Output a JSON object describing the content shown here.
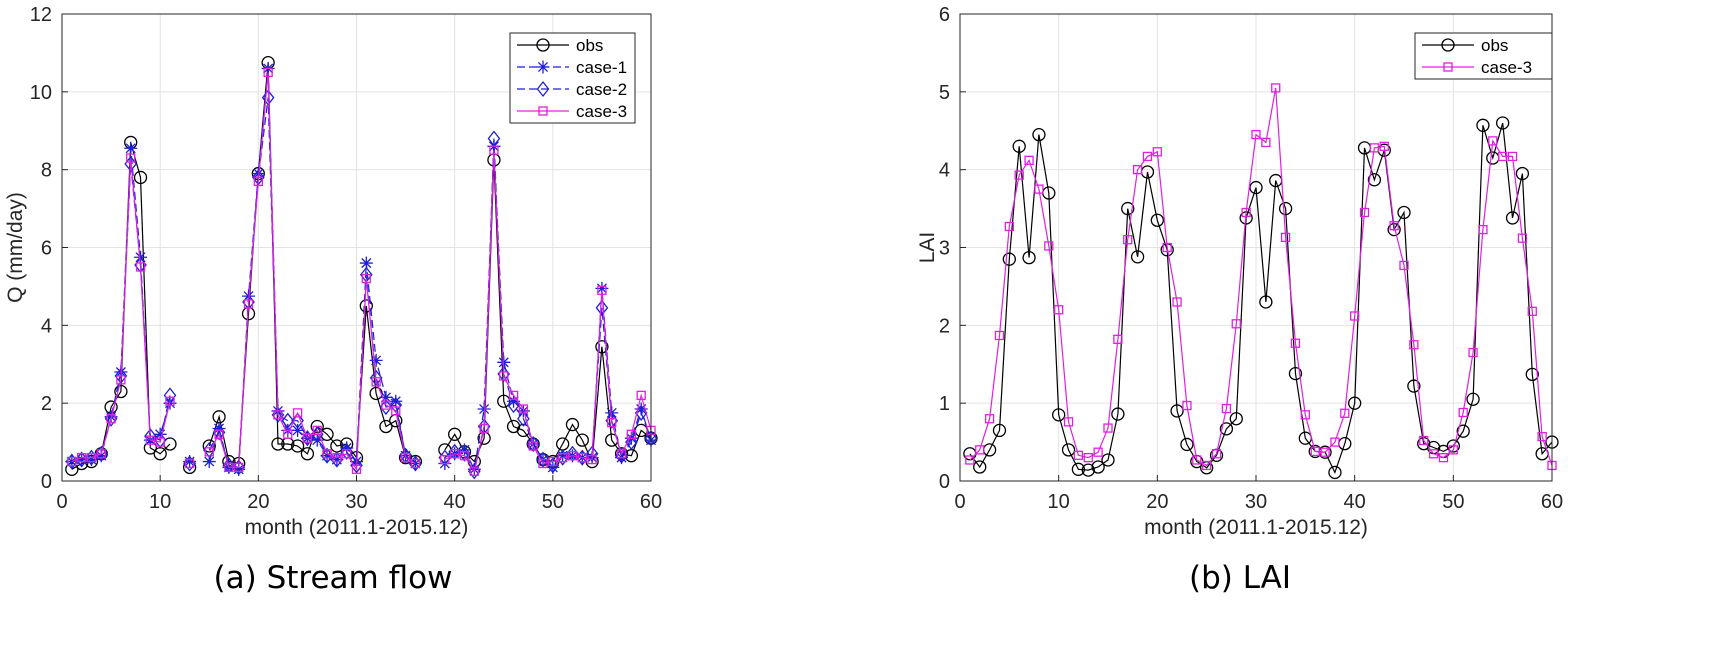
{
  "chart_data": [
    {
      "type": "line",
      "caption": "(a) Stream flow",
      "xlabel": "month (2011.1-2015.12)",
      "ylabel": "Q (mm/day)",
      "xlim": [
        0,
        60
      ],
      "ylim": [
        0,
        12
      ],
      "xticks": [
        0,
        10,
        20,
        30,
        40,
        50,
        60
      ],
      "yticks": [
        0,
        2,
        4,
        6,
        8,
        10,
        12
      ],
      "grid": true,
      "legend_position": "top-right",
      "x": [
        1,
        2,
        3,
        4,
        5,
        6,
        7,
        8,
        9,
        10,
        11,
        12,
        13,
        14,
        15,
        16,
        17,
        18,
        19,
        20,
        21,
        22,
        23,
        24,
        25,
        26,
        27,
        28,
        29,
        30,
        31,
        32,
        33,
        34,
        35,
        36,
        37,
        38,
        39,
        40,
        41,
        42,
        43,
        44,
        45,
        46,
        47,
        48,
        49,
        50,
        51,
        52,
        53,
        54,
        55,
        56,
        57,
        58,
        59,
        60
      ],
      "series": [
        {
          "name": "obs",
          "color": "#000000",
          "marker": "circle",
          "dash": "solid",
          "values": [
            0.3,
            0.45,
            0.5,
            0.7,
            1.9,
            2.3,
            8.7,
            7.8,
            0.85,
            0.7,
            0.95,
            null,
            0.35,
            null,
            0.9,
            1.65,
            0.5,
            0.45,
            4.3,
            7.9,
            10.75,
            0.95,
            0.95,
            0.9,
            0.7,
            1.4,
            1.2,
            0.9,
            0.95,
            0.6,
            4.5,
            2.25,
            1.4,
            1.55,
            0.6,
            0.5,
            null,
            null,
            0.8,
            1.2,
            0.75,
            0.5,
            1.1,
            8.25,
            2.05,
            1.4,
            1.3,
            0.95,
            0.55,
            0.5,
            0.95,
            1.45,
            1.05,
            0.5,
            3.45,
            1.05,
            0.7,
            0.65,
            1.3,
            1.1
          ]
        },
        {
          "name": "case-1",
          "color": "#1f1fd6",
          "marker": "star",
          "dash": "dashed",
          "values": [
            0.5,
            0.55,
            0.55,
            0.65,
            1.65,
            2.8,
            8.55,
            5.75,
            1.05,
            1.2,
            2.0,
            null,
            0.5,
            null,
            0.5,
            1.35,
            0.35,
            0.3,
            4.75,
            7.9,
            10.6,
            1.8,
            1.3,
            1.3,
            1.1,
            1.05,
            0.65,
            0.55,
            0.85,
            0.5,
            5.6,
            3.1,
            2.15,
            2.05,
            0.65,
            0.45,
            null,
            null,
            0.45,
            0.7,
            0.8,
            0.3,
            1.85,
            8.6,
            3.05,
            2.05,
            1.8,
            0.95,
            0.55,
            0.35,
            0.65,
            0.65,
            0.6,
            0.6,
            4.95,
            1.75,
            0.6,
            1.1,
            1.85,
            1.05
          ]
        },
        {
          "name": "case-2",
          "color": "#1f1fd6",
          "marker": "diamond",
          "dash": "dashed",
          "values": [
            0.5,
            0.55,
            0.6,
            0.7,
            1.6,
            2.7,
            8.15,
            5.55,
            1.15,
            1.05,
            2.2,
            null,
            0.45,
            null,
            0.8,
            1.25,
            0.4,
            0.35,
            4.6,
            7.8,
            9.85,
            1.7,
            1.55,
            1.55,
            1.1,
            1.2,
            0.65,
            0.55,
            0.75,
            0.4,
            5.3,
            2.65,
            1.9,
            1.95,
            0.65,
            0.45,
            null,
            null,
            0.6,
            0.75,
            0.7,
            0.25,
            1.4,
            8.8,
            2.75,
            1.95,
            1.6,
            0.95,
            0.55,
            0.4,
            0.6,
            0.7,
            0.6,
            0.7,
            4.45,
            1.55,
            0.65,
            1.0,
            1.75,
            1.1
          ]
        },
        {
          "name": "case-3",
          "color": "#e020e0",
          "marker": "square",
          "dash": "solid",
          "values": [
            0.5,
            0.6,
            0.6,
            0.7,
            1.6,
            2.6,
            8.3,
            5.5,
            1.05,
            1.0,
            2.05,
            null,
            0.45,
            null,
            0.75,
            1.2,
            0.35,
            0.35,
            4.55,
            7.7,
            10.5,
            1.7,
            1.2,
            1.75,
            1.1,
            1.3,
            0.7,
            0.6,
            0.7,
            0.3,
            5.2,
            2.55,
            1.95,
            1.8,
            0.6,
            0.45,
            null,
            null,
            0.55,
            0.7,
            0.65,
            0.25,
            1.35,
            8.5,
            2.7,
            2.2,
            1.85,
            0.9,
            0.45,
            0.5,
            0.6,
            0.65,
            0.6,
            0.55,
            4.9,
            1.5,
            0.7,
            1.2,
            2.2,
            1.3
          ]
        }
      ]
    },
    {
      "type": "line",
      "caption": "(b) LAI",
      "xlabel": "month (2011.1-2015.12)",
      "ylabel": "LAI",
      "xlim": [
        0,
        60
      ],
      "ylim": [
        0,
        6
      ],
      "xticks": [
        0,
        10,
        20,
        30,
        40,
        50,
        60
      ],
      "yticks": [
        0,
        1,
        2,
        3,
        4,
        5,
        6
      ],
      "grid": true,
      "legend_position": "top-right",
      "x": [
        1,
        2,
        3,
        4,
        5,
        6,
        7,
        8,
        9,
        10,
        11,
        12,
        13,
        14,
        15,
        16,
        17,
        18,
        19,
        20,
        21,
        22,
        23,
        24,
        25,
        26,
        27,
        28,
        29,
        30,
        31,
        32,
        33,
        34,
        35,
        36,
        37,
        38,
        39,
        40,
        41,
        42,
        43,
        44,
        45,
        46,
        47,
        48,
        49,
        50,
        51,
        52,
        53,
        54,
        55,
        56,
        57,
        58,
        59,
        60
      ],
      "series": [
        {
          "name": "obs",
          "color": "#000000",
          "marker": "circle",
          "dash": "solid",
          "values": [
            0.35,
            0.18,
            0.4,
            0.65,
            2.85,
            4.3,
            2.87,
            4.45,
            3.7,
            0.85,
            0.4,
            0.15,
            0.14,
            0.18,
            0.27,
            0.86,
            3.5,
            2.88,
            3.97,
            3.35,
            2.97,
            0.9,
            0.47,
            0.25,
            0.17,
            0.33,
            0.67,
            0.8,
            3.38,
            3.77,
            2.3,
            3.86,
            3.5,
            1.38,
            0.55,
            0.38,
            0.37,
            0.11,
            0.48,
            1.0,
            4.28,
            3.87,
            4.25,
            3.23,
            3.45,
            1.22,
            0.48,
            0.43,
            0.38,
            0.45,
            0.64,
            1.05,
            4.57,
            4.15,
            4.6,
            3.38,
            3.95,
            1.37,
            0.35,
            0.5
          ]
        },
        {
          "name": "case-3",
          "color": "#e020e0",
          "marker": "square",
          "dash": "solid",
          "values": [
            0.27,
            0.4,
            0.8,
            1.87,
            3.27,
            3.93,
            4.12,
            3.75,
            3.02,
            2.2,
            0.76,
            0.33,
            0.3,
            0.37,
            0.68,
            1.82,
            3.1,
            4.0,
            4.17,
            4.23,
            3.0,
            2.3,
            0.97,
            0.27,
            0.2,
            0.35,
            0.93,
            2.02,
            3.45,
            4.45,
            4.35,
            5.05,
            3.13,
            1.77,
            0.85,
            0.38,
            0.37,
            0.5,
            0.87,
            2.12,
            3.45,
            4.28,
            4.3,
            3.28,
            2.77,
            1.75,
            0.52,
            0.35,
            0.3,
            0.4,
            0.88,
            1.65,
            3.23,
            4.37,
            4.17,
            4.17,
            3.12,
            2.18,
            0.57,
            0.2
          ]
        }
      ]
    }
  ]
}
